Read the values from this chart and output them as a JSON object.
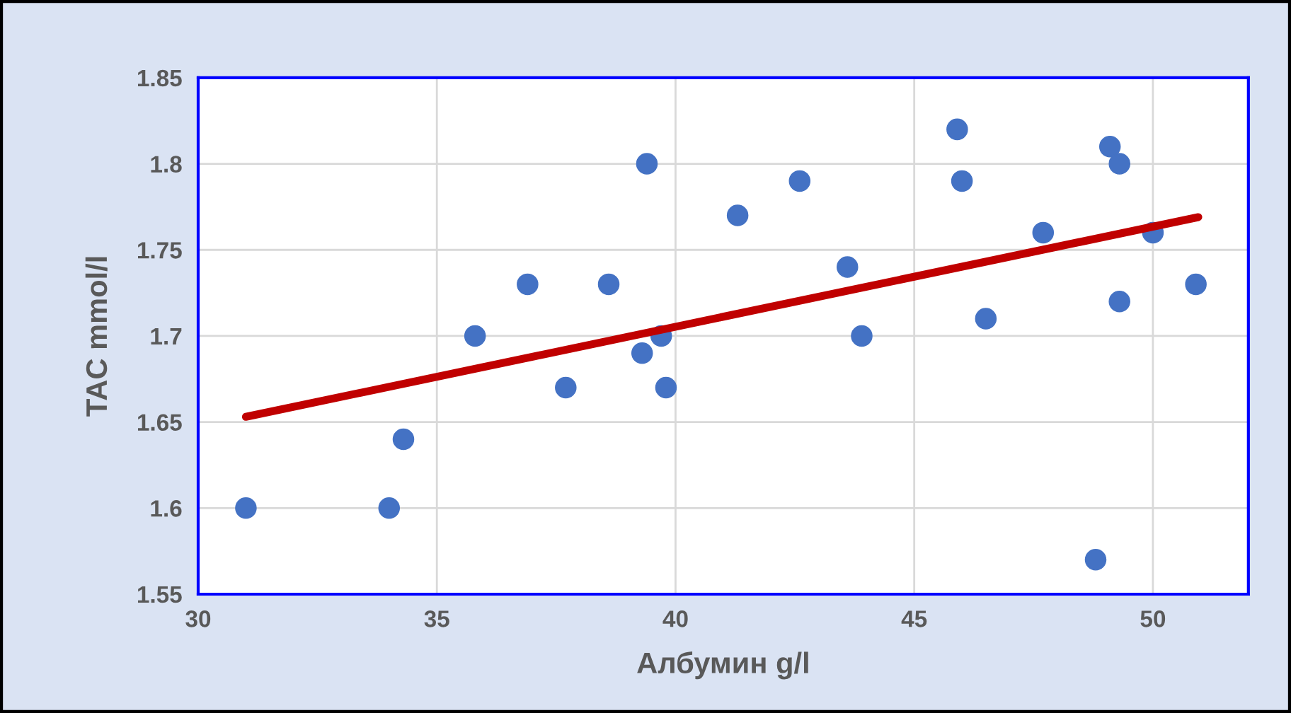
{
  "chart_data": {
    "type": "scatter",
    "xlabel": "Албумин g/l",
    "ylabel": "TAC mmol/l",
    "x": [
      31,
      34.0,
      34.3,
      35.8,
      36.9,
      37.7,
      38.6,
      39.4,
      39.3,
      39.7,
      39.8,
      41.3,
      42.6,
      43.6,
      43.9,
      45.9,
      46.0,
      46.5,
      47.7,
      48.8,
      49.1,
      49.3,
      49.3,
      50.0,
      50.9
    ],
    "series": [
      {
        "color": "#4472c4",
        "marker": "circle",
        "values": [
          1.6,
          1.6,
          1.64,
          1.7,
          1.73,
          1.67,
          1.73,
          1.8,
          1.69,
          1.7,
          1.67,
          1.77,
          1.79,
          1.74,
          1.7,
          1.82,
          1.79,
          1.71,
          1.76,
          1.57,
          1.81,
          1.8,
          1.72,
          1.76,
          1.73
        ]
      },
      {
        "type": "line",
        "marker": "none",
        "color": "#c00000",
        "x": [
          31,
          50.95
        ],
        "values": [
          1.653,
          1.769
        ]
      }
    ],
    "xlim": [
      30,
      52
    ],
    "xticks": [
      30,
      35,
      40,
      45,
      50
    ],
    "ylim": [
      1.55,
      1.85
    ],
    "yticks": [
      1.55,
      {
        "value": 1.6,
        "label": "1.6"
      },
      1.65,
      {
        "value": 1.7,
        "label": "1.7"
      },
      1.75,
      {
        "value": 1.8,
        "label": "1.8"
      },
      1.85
    ],
    "grid": true,
    "line_style": "solid"
  }
}
